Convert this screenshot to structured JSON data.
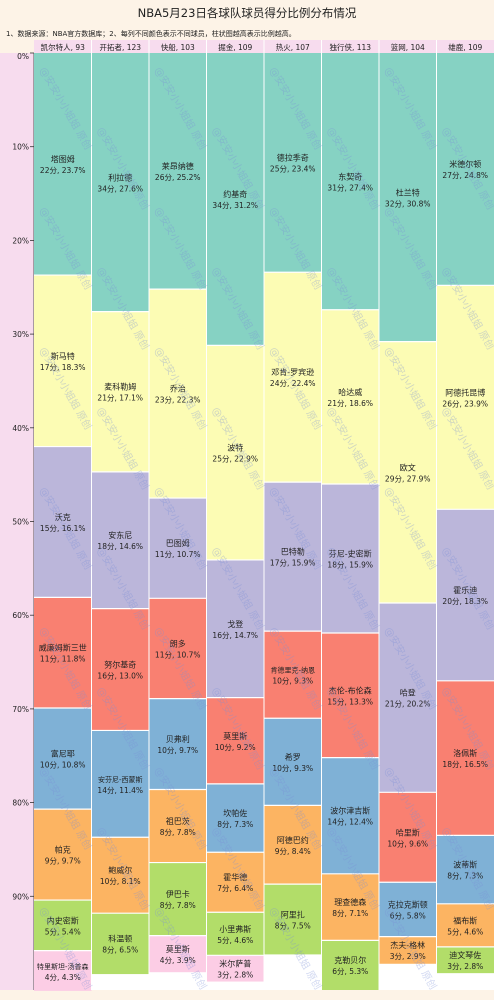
{
  "chart_data": {
    "type": "bar",
    "stacked": true,
    "title": "NBA5月23日各球队球员得分比例分布情况",
    "subtitle": "1、数据来源：NBA官方数据库；2、每列不同颜色表示不同球员，柱状图越高表示比例越高。",
    "watermark": "@安安小小姐姐 原创",
    "ylim": [
      0,
      100
    ],
    "yticks": [
      "0%",
      "10%",
      "20%",
      "30%",
      "40%",
      "50%",
      "60%",
      "70%",
      "80%",
      "90%"
    ],
    "colors": [
      "#86d2c3",
      "#fcfcb4",
      "#bbb6da",
      "#f98071",
      "#7fb1d6",
      "#fcb462",
      "#b2dd69",
      "#fccde5",
      "#d9d9d9"
    ],
    "teams": [
      {
        "header": "凯尔特人, 93",
        "players": [
          {
            "name": "塔图姆",
            "label": "22分, 23.7%",
            "pct": 23.7
          },
          {
            "name": "斯马特",
            "label": "17分, 18.3%",
            "pct": 18.3
          },
          {
            "name": "沃克",
            "label": "15分, 16.1%",
            "pct": 16.1
          },
          {
            "name": "威廉姆斯三世",
            "label": "11分, 11.8%",
            "pct": 11.8
          },
          {
            "name": "富尼耶",
            "label": "10分, 10.8%",
            "pct": 10.8
          },
          {
            "name": "帕克",
            "label": "9分, 9.7%",
            "pct": 9.7
          },
          {
            "name": "内史密斯",
            "label": "5分, 5.4%",
            "pct": 5.4
          },
          {
            "name": "特里斯坦-汤普森",
            "label": "4分, 4.3%",
            "pct": 4.3
          }
        ]
      },
      {
        "header": "开拓者, 123",
        "players": [
          {
            "name": "利拉德",
            "label": "34分, 27.6%",
            "pct": 27.6
          },
          {
            "name": "麦科勒姆",
            "label": "21分, 17.1%",
            "pct": 17.1
          },
          {
            "name": "安东尼",
            "label": "18分, 14.6%",
            "pct": 14.6
          },
          {
            "name": "努尔基奇",
            "label": "16分, 13.0%",
            "pct": 13.0
          },
          {
            "name": "安芬尼-西蒙斯",
            "label": "14分, 11.4%",
            "pct": 11.4
          },
          {
            "name": "鲍威尔",
            "label": "10分, 8.1%",
            "pct": 8.1
          },
          {
            "name": "科温顿",
            "label": "8分, 6.5%",
            "pct": 6.5
          }
        ]
      },
      {
        "header": "快船, 103",
        "players": [
          {
            "name": "莱昂纳德",
            "label": "26分, 25.2%",
            "pct": 25.2
          },
          {
            "name": "乔治",
            "label": "23分, 22.3%",
            "pct": 22.3
          },
          {
            "name": "巴图姆",
            "label": "11分, 10.7%",
            "pct": 10.7
          },
          {
            "name": "朗多",
            "label": "11分, 10.7%",
            "pct": 10.7
          },
          {
            "name": "贝弗利",
            "label": "10分, 9.7%",
            "pct": 9.7
          },
          {
            "name": "祖巴茨",
            "label": "8分, 7.8%",
            "pct": 7.8
          },
          {
            "name": "伊巴卡",
            "label": "8分, 7.8%",
            "pct": 7.8
          },
          {
            "name": "莫里斯",
            "label": "4分, 3.9%",
            "pct": 3.9
          }
        ]
      },
      {
        "header": "掘金, 109",
        "players": [
          {
            "name": "约基奇",
            "label": "34分, 31.2%",
            "pct": 31.2
          },
          {
            "name": "波特",
            "label": "25分, 22.9%",
            "pct": 22.9
          },
          {
            "name": "戈登",
            "label": "16分, 14.7%",
            "pct": 14.7
          },
          {
            "name": "莫里斯",
            "label": "10分, 9.2%",
            "pct": 9.2
          },
          {
            "name": "坎帕佐",
            "label": "8分, 7.3%",
            "pct": 7.3
          },
          {
            "name": "霍华德",
            "label": "7分, 6.4%",
            "pct": 6.4
          },
          {
            "name": "小里弗斯",
            "label": "5分, 4.6%",
            "pct": 4.6
          },
          {
            "name": "米尔萨普",
            "label": "3分, 2.8%",
            "pct": 2.8
          }
        ]
      },
      {
        "header": "热火, 107",
        "players": [
          {
            "name": "德拉季奇",
            "label": "25分, 23.4%",
            "pct": 23.4
          },
          {
            "name": "邓肯-罗宾逊",
            "label": "24分, 22.4%",
            "pct": 22.4
          },
          {
            "name": "巴特勒",
            "label": "17分, 15.9%",
            "pct": 15.9
          },
          {
            "name": "肯德里克-纳恩",
            "label": "10分, 9.3%",
            "pct": 9.3
          },
          {
            "name": "希罗",
            "label": "10分, 9.3%",
            "pct": 9.3
          },
          {
            "name": "阿德巴约",
            "label": "9分, 8.4%",
            "pct": 8.4
          },
          {
            "name": "阿里扎",
            "label": "8分, 7.5%",
            "pct": 7.5
          }
        ]
      },
      {
        "header": "独行侠, 113",
        "players": [
          {
            "name": "东契奇",
            "label": "31分, 27.4%",
            "pct": 27.4
          },
          {
            "name": "哈达威",
            "label": "21分, 18.6%",
            "pct": 18.6
          },
          {
            "name": "芬尼-史密斯",
            "label": "18分, 15.9%",
            "pct": 15.9
          },
          {
            "name": "杰伦-布伦森",
            "label": "15分, 13.3%",
            "pct": 13.3
          },
          {
            "name": "波尔津吉斯",
            "label": "14分, 12.4%",
            "pct": 12.4
          },
          {
            "name": "理查德森",
            "label": "8分, 7.1%",
            "pct": 7.1
          },
          {
            "name": "克勒贝尔",
            "label": "6分, 5.3%",
            "pct": 5.3
          }
        ]
      },
      {
        "header": "篮网, 104",
        "players": [
          {
            "name": "杜兰特",
            "label": "32分, 30.8%",
            "pct": 30.8
          },
          {
            "name": "欧文",
            "label": "29分, 27.9%",
            "pct": 27.9
          },
          {
            "name": "哈登",
            "label": "21分, 20.2%",
            "pct": 20.2
          },
          {
            "name": "哈里斯",
            "label": "10分, 9.6%",
            "pct": 9.6
          },
          {
            "name": "克拉克斯顿",
            "label": "6分, 5.8%",
            "pct": 5.8
          },
          {
            "name": "杰夫-格林",
            "label": "3分, 2.9%",
            "pct": 2.9
          }
        ]
      },
      {
        "header": "雄鹿, 109",
        "players": [
          {
            "name": "米德尔顿",
            "label": "27分, 24.8%",
            "pct": 24.8
          },
          {
            "name": "阿德托昆博",
            "label": "26分, 23.9%",
            "pct": 23.9
          },
          {
            "name": "霍乐迪",
            "label": "20分, 18.3%",
            "pct": 18.3
          },
          {
            "name": "洛佩斯",
            "label": "18分, 16.5%",
            "pct": 16.5
          },
          {
            "name": "波蒂斯",
            "label": "8分, 7.3%",
            "pct": 7.3
          },
          {
            "name": "福布斯",
            "label": "5分, 4.6%",
            "pct": 4.6
          },
          {
            "name": "迪文琴佐",
            "label": "3分, 2.8%",
            "pct": 2.8
          }
        ]
      }
    ]
  }
}
